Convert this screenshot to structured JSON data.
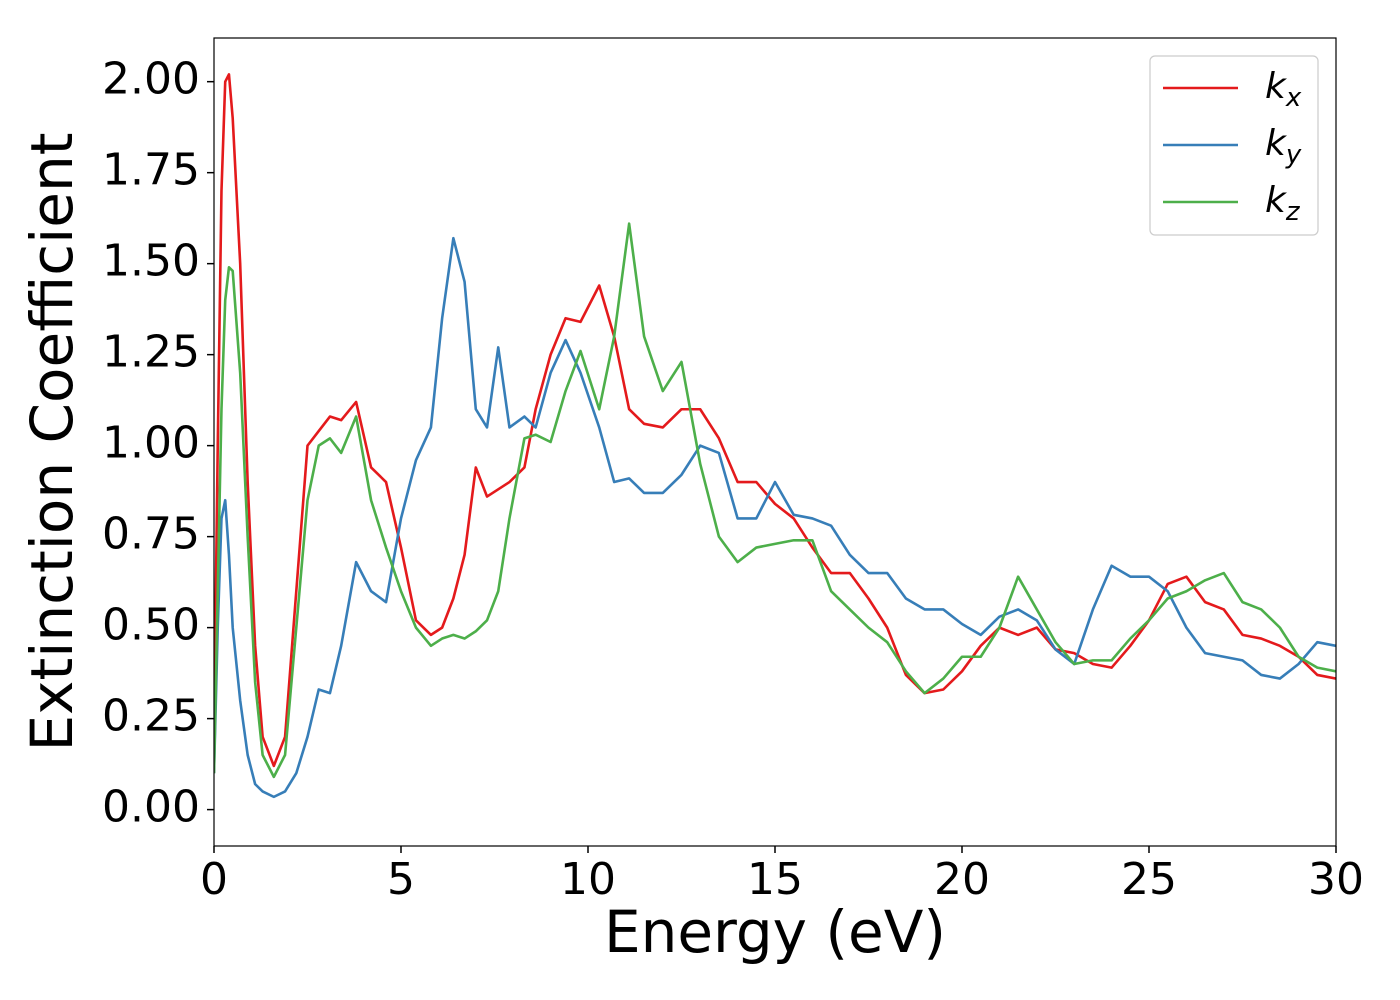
{
  "chart_data": {
    "type": "line",
    "xlabel": "Energy (eV)",
    "ylabel": "Extinction Coefficient",
    "x": [
      0,
      0.1,
      0.2,
      0.3,
      0.4,
      0.5,
      0.7,
      0.9,
      1.1,
      1.3,
      1.6,
      1.9,
      2.2,
      2.5,
      2.8,
      3.1,
      3.4,
      3.8,
      4.2,
      4.6,
      5,
      5.4,
      5.8,
      6.1,
      6.4,
      6.7,
      7,
      7.3,
      7.6,
      7.9,
      8.3,
      8.6,
      9,
      9.4,
      9.8,
      10.3,
      10.7,
      11.1,
      11.5,
      12,
      12.5,
      13,
      13.5,
      14,
      14.5,
      15,
      15.5,
      16,
      16.5,
      17,
      17.5,
      18,
      18.5,
      19,
      19.5,
      20,
      20.5,
      21,
      21.5,
      22,
      22.5,
      23,
      23.5,
      24,
      24.5,
      25,
      25.5,
      26,
      26.5,
      27,
      27.5,
      28,
      28.5,
      29,
      29.5,
      30
    ],
    "series": [
      {
        "name": "kx",
        "color": "#e41a1c",
        "values": [
          0.2,
          1.0,
          1.7,
          2.0,
          2.02,
          1.9,
          1.5,
          0.9,
          0.45,
          0.2,
          0.12,
          0.2,
          0.6,
          1.0,
          1.04,
          1.08,
          1.07,
          1.12,
          0.94,
          0.9,
          0.72,
          0.52,
          0.48,
          0.5,
          0.58,
          0.7,
          0.94,
          0.86,
          0.88,
          0.9,
          0.94,
          1.1,
          1.25,
          1.35,
          1.34,
          1.44,
          1.3,
          1.1,
          1.06,
          1.05,
          1.1,
          1.1,
          1.02,
          0.9,
          0.9,
          0.84,
          0.8,
          0.72,
          0.65,
          0.65,
          0.58,
          0.5,
          0.37,
          0.32,
          0.33,
          0.38,
          0.45,
          0.5,
          0.48,
          0.5,
          0.44,
          0.43,
          0.4,
          0.39,
          0.45,
          0.52,
          0.62,
          0.64,
          0.57,
          0.55,
          0.48,
          0.47,
          0.45,
          0.42,
          0.37,
          0.36
        ]
      },
      {
        "name": "ky",
        "color": "#377eb8",
        "values": [
          0.1,
          0.5,
          0.8,
          0.85,
          0.7,
          0.5,
          0.3,
          0.15,
          0.07,
          0.05,
          0.035,
          0.05,
          0.1,
          0.2,
          0.33,
          0.32,
          0.45,
          0.68,
          0.6,
          0.57,
          0.8,
          0.96,
          1.05,
          1.35,
          1.57,
          1.45,
          1.1,
          1.05,
          1.27,
          1.05,
          1.08,
          1.05,
          1.2,
          1.29,
          1.2,
          1.05,
          0.9,
          0.91,
          0.87,
          0.87,
          0.92,
          1.0,
          0.98,
          0.8,
          0.8,
          0.9,
          0.81,
          0.8,
          0.78,
          0.7,
          0.65,
          0.65,
          0.58,
          0.55,
          0.55,
          0.51,
          0.48,
          0.53,
          0.55,
          0.52,
          0.44,
          0.4,
          0.55,
          0.67,
          0.64,
          0.64,
          0.6,
          0.5,
          0.43,
          0.42,
          0.41,
          0.37,
          0.36,
          0.4,
          0.46,
          0.45
        ]
      },
      {
        "name": "kz",
        "color": "#4daf4a",
        "values": [
          0.1,
          0.6,
          1.1,
          1.4,
          1.49,
          1.48,
          1.2,
          0.75,
          0.35,
          0.15,
          0.09,
          0.15,
          0.5,
          0.85,
          1.0,
          1.02,
          0.98,
          1.08,
          0.85,
          0.72,
          0.6,
          0.5,
          0.45,
          0.47,
          0.48,
          0.47,
          0.49,
          0.52,
          0.6,
          0.8,
          1.02,
          1.03,
          1.01,
          1.15,
          1.26,
          1.1,
          1.3,
          1.61,
          1.3,
          1.15,
          1.23,
          0.95,
          0.75,
          0.68,
          0.72,
          0.73,
          0.74,
          0.74,
          0.6,
          0.55,
          0.5,
          0.46,
          0.38,
          0.32,
          0.36,
          0.42,
          0.42,
          0.5,
          0.64,
          0.55,
          0.46,
          0.4,
          0.41,
          0.41,
          0.47,
          0.52,
          0.58,
          0.6,
          0.63,
          0.65,
          0.57,
          0.55,
          0.5,
          0.42,
          0.39,
          0.38
        ]
      }
    ],
    "xlim": [
      0,
      30
    ],
    "xticks": [
      0,
      5,
      10,
      15,
      20,
      25,
      30
    ],
    "ylim": [
      -0.1,
      2.12
    ],
    "yticks": [
      {
        "value": 0,
        "label": "0.00"
      },
      {
        "value": 0.25,
        "label": "0.25"
      },
      {
        "value": 0.5,
        "label": "0.50"
      },
      {
        "value": 0.75,
        "label": "0.75"
      },
      {
        "value": 1,
        "label": "1.00"
      },
      {
        "value": 1.25,
        "label": "1.25"
      },
      {
        "value": 1.5,
        "label": "1.50"
      },
      {
        "value": 1.75,
        "label": "1.75"
      },
      {
        "value": 2,
        "label": "2.00"
      }
    ],
    "grid": false,
    "legend": "upper right"
  }
}
